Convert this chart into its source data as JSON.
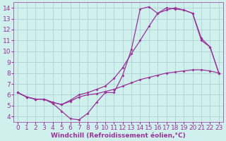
{
  "xlabel": "Windchill (Refroidissement éolien,°C)",
  "background_color": "#d0f0ee",
  "line_color": "#993399",
  "xlim": [
    -0.5,
    23.5
  ],
  "ylim": [
    3.5,
    14.5
  ],
  "xticks": [
    0,
    1,
    2,
    3,
    4,
    5,
    6,
    7,
    8,
    9,
    10,
    11,
    12,
    13,
    14,
    15,
    16,
    17,
    18,
    19,
    20,
    21,
    22,
    23
  ],
  "yticks": [
    4,
    5,
    6,
    7,
    8,
    9,
    10,
    11,
    12,
    13,
    14
  ],
  "line1_x": [
    0,
    1,
    2,
    3,
    4,
    5,
    6,
    7,
    8,
    9,
    10,
    11,
    12,
    13,
    14,
    15,
    16,
    17,
    18,
    19,
    20,
    21,
    22,
    23
  ],
  "line1_y": [
    6.2,
    5.8,
    5.6,
    5.6,
    5.2,
    4.5,
    3.8,
    3.7,
    4.3,
    5.3,
    6.2,
    6.2,
    7.8,
    10.2,
    13.9,
    14.1,
    13.5,
    14.0,
    13.9,
    13.8,
    13.5,
    11.0,
    10.4,
    8.0
  ],
  "line2_x": [
    0,
    1,
    2,
    3,
    4,
    5,
    6,
    7,
    8,
    9,
    10,
    11,
    12,
    13,
    14,
    15,
    16,
    17,
    18,
    19,
    20,
    21,
    22,
    23
  ],
  "line2_y": [
    6.2,
    5.8,
    5.6,
    5.6,
    5.3,
    5.1,
    5.4,
    5.8,
    6.0,
    6.1,
    6.3,
    6.5,
    6.8,
    7.1,
    7.4,
    7.6,
    7.8,
    8.0,
    8.1,
    8.2,
    8.3,
    8.3,
    8.2,
    8.0
  ],
  "line3_x": [
    0,
    1,
    2,
    3,
    4,
    5,
    6,
    7,
    8,
    9,
    10,
    11,
    12,
    13,
    14,
    15,
    16,
    17,
    18,
    19,
    20,
    21,
    22,
    23
  ],
  "line3_y": [
    6.2,
    5.8,
    5.6,
    5.6,
    5.3,
    5.1,
    5.5,
    6.0,
    6.2,
    6.5,
    6.8,
    7.5,
    8.5,
    9.8,
    11.0,
    12.3,
    13.5,
    13.8,
    14.0,
    13.8,
    13.5,
    11.2,
    10.4,
    8.0
  ],
  "grid_color": "#aacccc",
  "tick_fontsize": 6.5,
  "marker": "D",
  "markersize": 2.0,
  "linewidth": 0.9
}
